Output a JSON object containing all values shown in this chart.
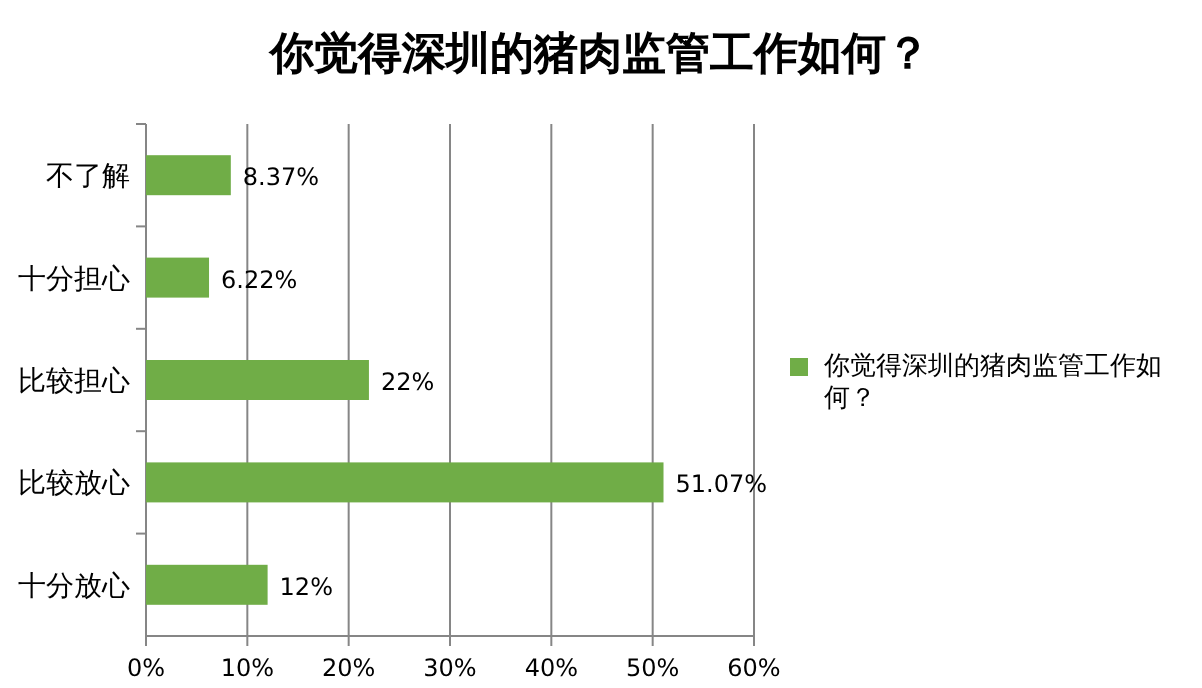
{
  "chart_data": {
    "type": "bar",
    "orientation": "horizontal",
    "title": "你觉得深圳的猪肉监管工作如何？",
    "categories": [
      "不了解",
      "十分担心",
      "比较担心",
      "比较放心",
      "十分放心"
    ],
    "series": [
      {
        "name": "你觉得深圳的猪肉监管工作如何？",
        "color": "#70ad47",
        "values": [
          8.37,
          6.22,
          22,
          51.07,
          12
        ],
        "value_labels": [
          "8.37%",
          "6.22%",
          "22%",
          "51.07%",
          "12%"
        ]
      }
    ],
    "xlim": [
      0,
      60
    ],
    "xticks": [
      {
        "value": 0,
        "label": "0%"
      },
      {
        "value": 10,
        "label": "10%"
      },
      {
        "value": 20,
        "label": "20%"
      },
      {
        "value": 30,
        "label": "30%"
      },
      {
        "value": 40,
        "label": "40%"
      },
      {
        "value": 50,
        "label": "50%"
      },
      {
        "value": 60,
        "label": "60%"
      }
    ],
    "grid": "x",
    "legend": "right"
  }
}
